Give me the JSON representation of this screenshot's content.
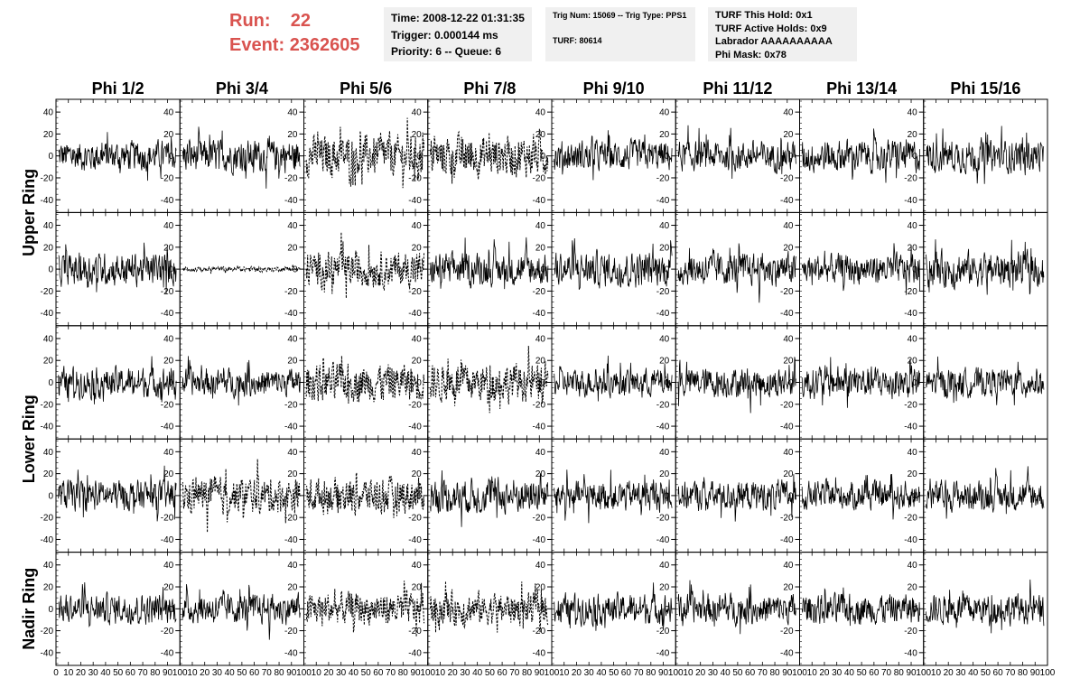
{
  "header": {
    "run_label": "Run:",
    "run_value": "22",
    "event_label": "Event:",
    "event_value": "2362605",
    "time": "Time: 2008-12-22 01:31:35",
    "trigger": "Trigger: 0.000144 ms",
    "priority": "Priority: 6 -- Queue: 6",
    "trig_num": "Trig Num: 15069 -- Trig Type: PPS1",
    "turf": "TURF: 80614",
    "turf_hold": "TURF This Hold: 0x1",
    "turf_active": "TURF Active Holds: 0x9",
    "labrador": "Labrador AAAAAAAAAA",
    "phi_mask": "Phi Mask: 0x78"
  },
  "chart_data": {
    "type": "line",
    "columns": [
      "Phi 1/2",
      "Phi 3/4",
      "Phi 5/6",
      "Phi 7/8",
      "Phi 9/10",
      "Phi 11/12",
      "Phi 13/14",
      "Phi 15/16"
    ],
    "row_labels": [
      "Upper Ring",
      "Lower Ring",
      "Nadir Ring"
    ],
    "rows": 5,
    "xlim": [
      0,
      100
    ],
    "ylim": [
      -50,
      50
    ],
    "yticks": [
      -40,
      -20,
      0,
      20,
      40
    ],
    "xticks": [
      0,
      10,
      20,
      30,
      40,
      50,
      60,
      70,
      80,
      90,
      100
    ],
    "amplitude": [
      [
        12,
        13,
        16,
        16,
        12,
        12,
        13,
        13
      ],
      [
        13,
        2,
        14,
        13,
        14,
        13,
        12,
        14
      ],
      [
        12,
        11,
        15,
        15,
        11,
        12,
        13,
        11
      ],
      [
        12,
        14,
        14,
        14,
        12,
        12,
        11,
        12
      ],
      [
        12,
        12,
        13,
        13,
        12,
        12,
        12,
        12
      ]
    ],
    "dashed": [
      [
        0,
        0,
        1,
        1,
        0,
        0,
        0,
        0
      ],
      [
        0,
        1,
        1,
        0,
        0,
        0,
        0,
        0
      ],
      [
        0,
        0,
        1,
        1,
        0,
        0,
        0,
        0
      ],
      [
        0,
        1,
        1,
        0,
        0,
        0,
        0,
        0
      ],
      [
        0,
        0,
        1,
        1,
        0,
        0,
        0,
        0
      ]
    ]
  }
}
